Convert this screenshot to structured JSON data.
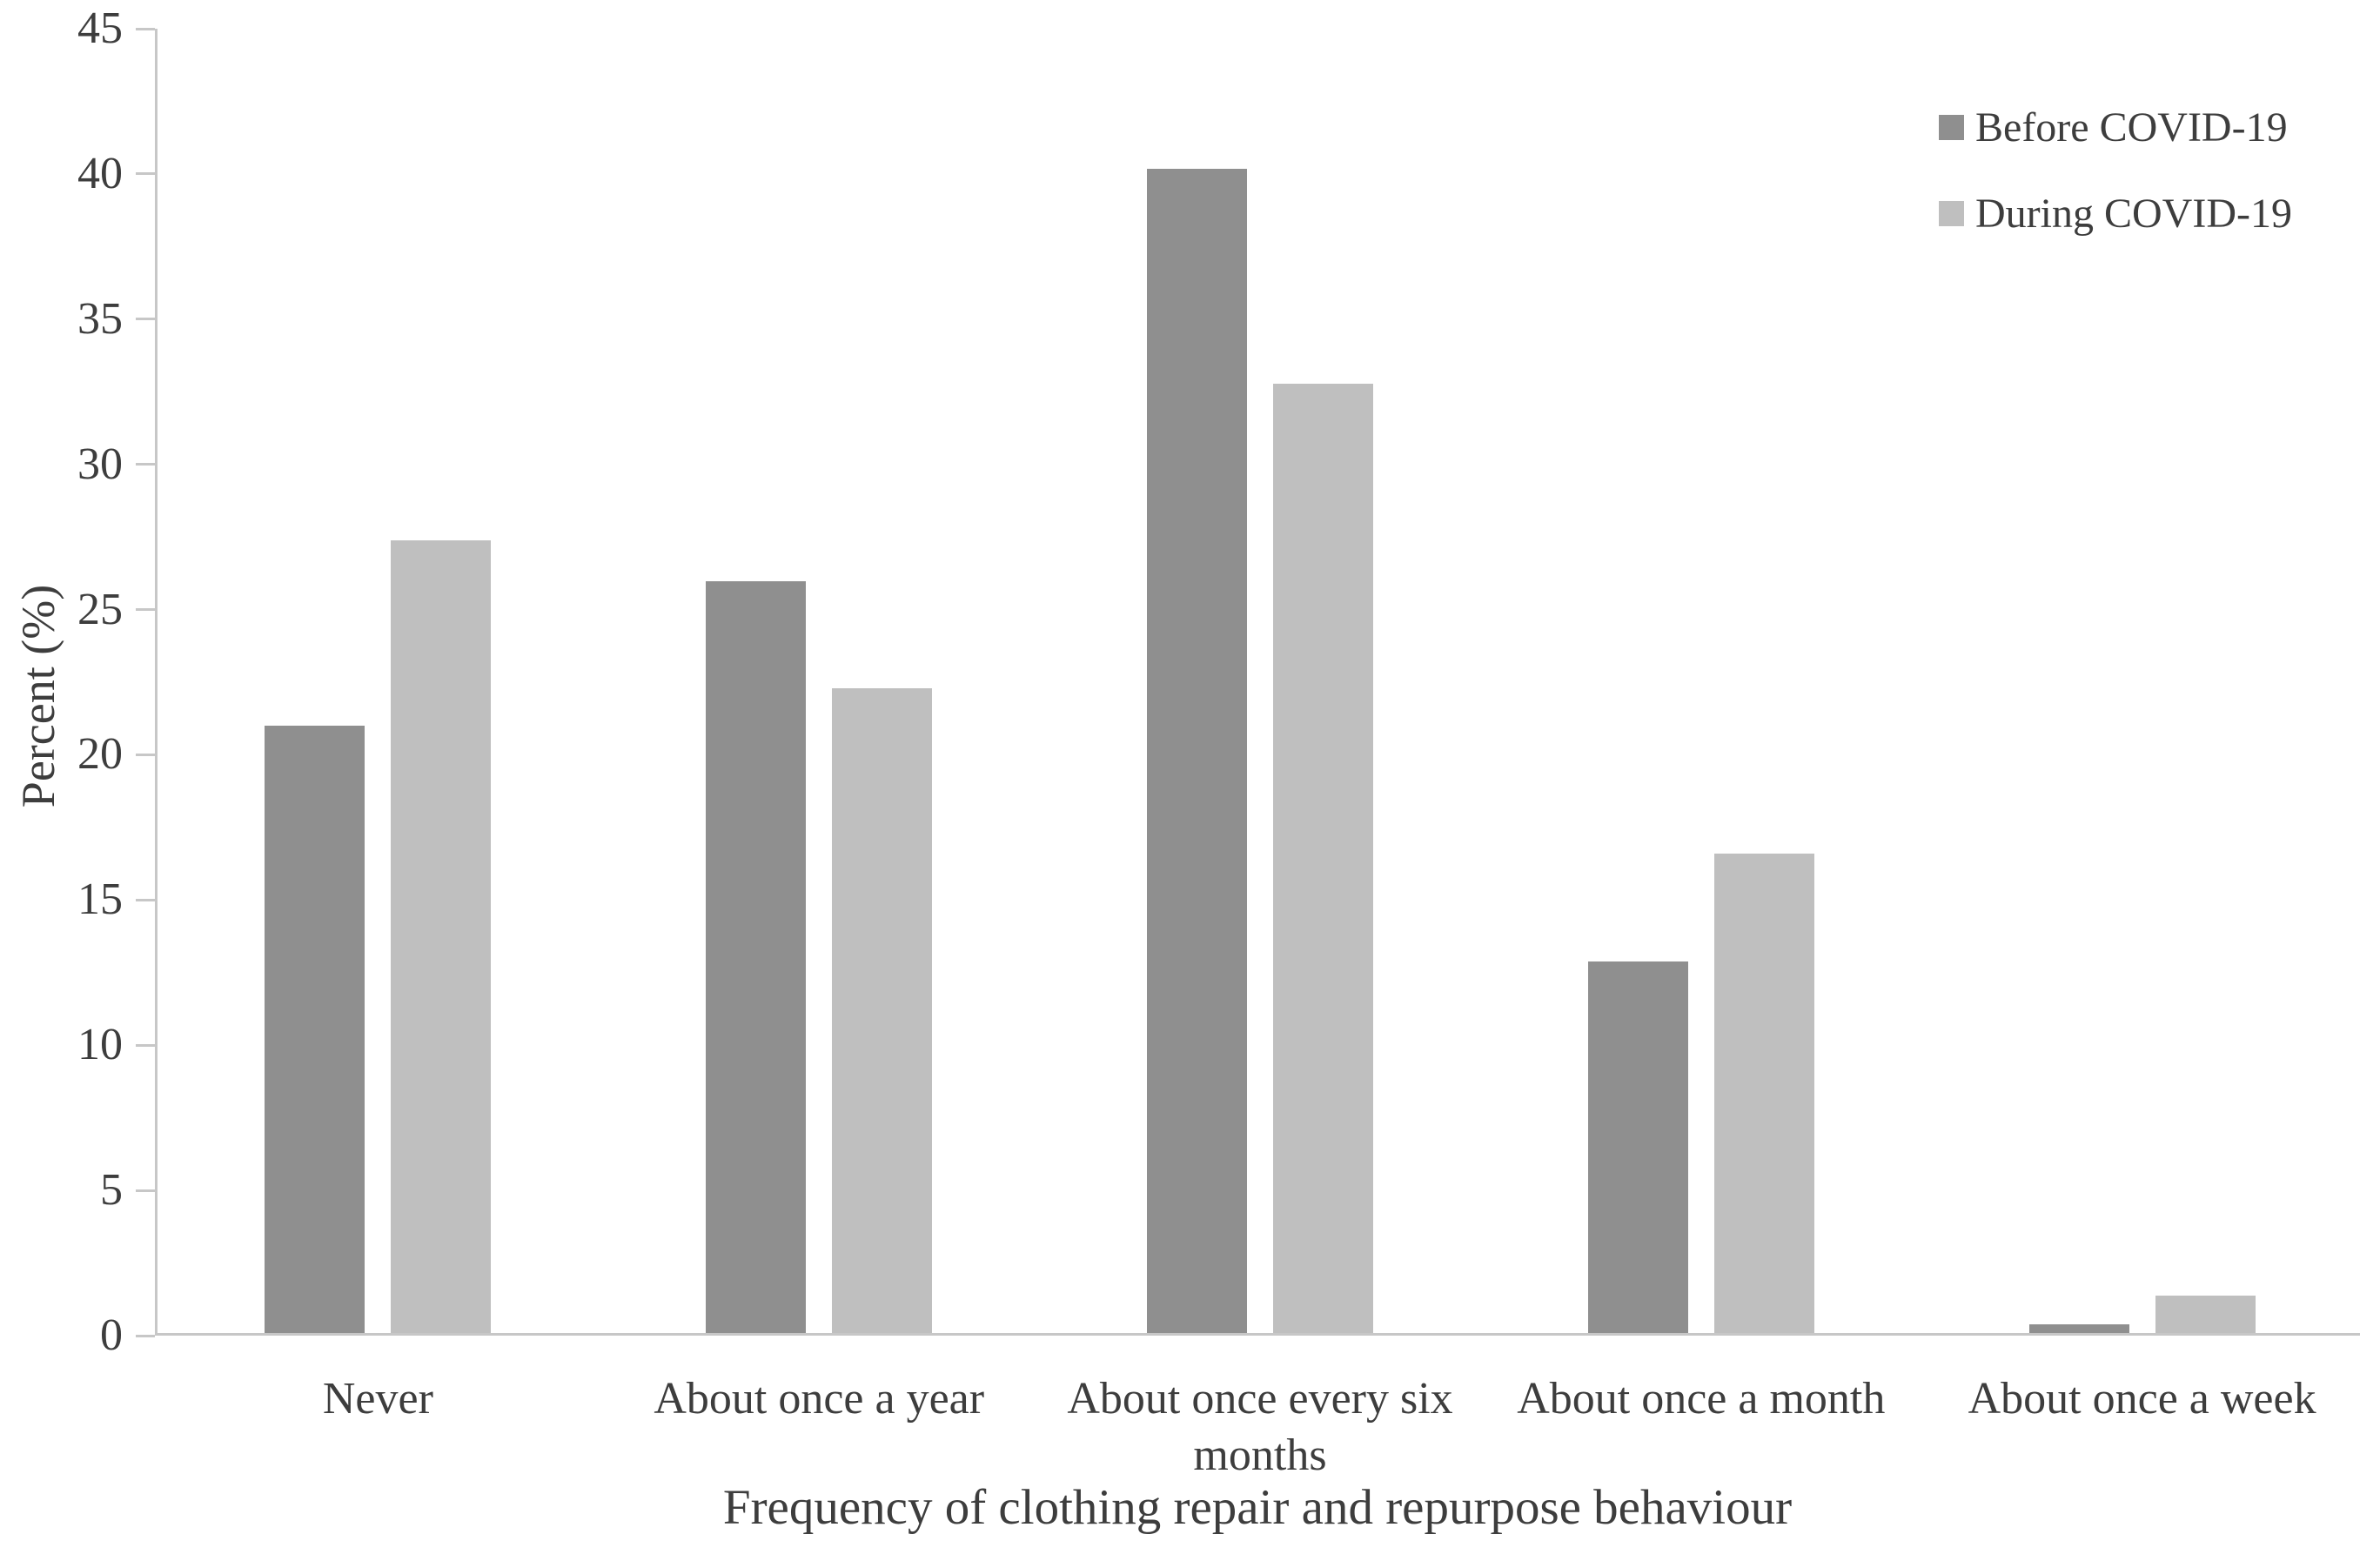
{
  "chart_data": {
    "type": "bar",
    "title": "",
    "categories": [
      "Never",
      "About once a year",
      "About once every six months",
      "About once a month",
      "About once a week"
    ],
    "series": [
      {
        "name": "Before COVID-19",
        "color": "#8f8f8f",
        "values": [
          20.9,
          25.9,
          40.1,
          12.8,
          0.3
        ]
      },
      {
        "name": "During COVID-19",
        "color": "#bfbfbf",
        "values": [
          27.3,
          22.2,
          32.7,
          16.5,
          1.3
        ]
      }
    ],
    "xlabel": "Frequency of clothing repair and repurpose behaviour",
    "ylabel": "Percent (%)",
    "ylim": [
      0,
      45
    ],
    "yticks": [
      0,
      5,
      10,
      15,
      20,
      25,
      30,
      35,
      40,
      45
    ],
    "grid": false,
    "legend_position": "top-right"
  },
  "colors": {
    "background": "#ffffff",
    "axis": "#c7c7c7",
    "text": "#3d3d3d",
    "series_before": "#8f8f8f",
    "series_during": "#bfbfbf"
  }
}
